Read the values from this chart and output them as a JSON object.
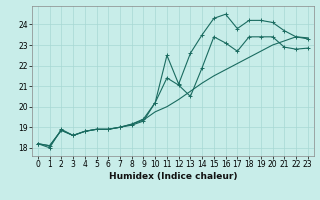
{
  "xlabel": "Humidex (Indice chaleur)",
  "bg_color": "#c8ede9",
  "grid_color": "#a8d8d4",
  "line_color": "#1a6b60",
  "xlim": [
    -0.5,
    23.5
  ],
  "ylim": [
    17.6,
    24.9
  ],
  "xticks": [
    0,
    1,
    2,
    3,
    4,
    5,
    6,
    7,
    8,
    9,
    10,
    11,
    12,
    13,
    14,
    15,
    16,
    17,
    18,
    19,
    20,
    21,
    22,
    23
  ],
  "yticks": [
    18,
    19,
    20,
    21,
    22,
    23,
    24
  ],
  "line1": [
    18.2,
    18.0,
    18.9,
    18.6,
    18.8,
    18.9,
    18.9,
    19.0,
    19.1,
    19.3,
    20.2,
    22.5,
    21.1,
    22.6,
    23.5,
    24.3,
    24.5,
    23.8,
    24.2,
    24.2,
    24.1,
    23.7,
    23.4,
    23.3
  ],
  "line2": [
    18.2,
    18.1,
    18.85,
    18.6,
    18.8,
    18.9,
    18.9,
    19.0,
    19.15,
    19.4,
    20.2,
    21.4,
    21.05,
    20.5,
    21.9,
    23.4,
    23.1,
    22.7,
    23.4,
    23.4,
    23.4,
    22.9,
    22.8,
    22.85
  ],
  "line3": [
    18.2,
    18.1,
    18.85,
    18.6,
    18.8,
    18.9,
    18.9,
    19.0,
    19.15,
    19.35,
    19.75,
    20.0,
    20.35,
    20.75,
    21.15,
    21.5,
    21.8,
    22.1,
    22.4,
    22.7,
    23.0,
    23.2,
    23.4,
    23.35
  ]
}
